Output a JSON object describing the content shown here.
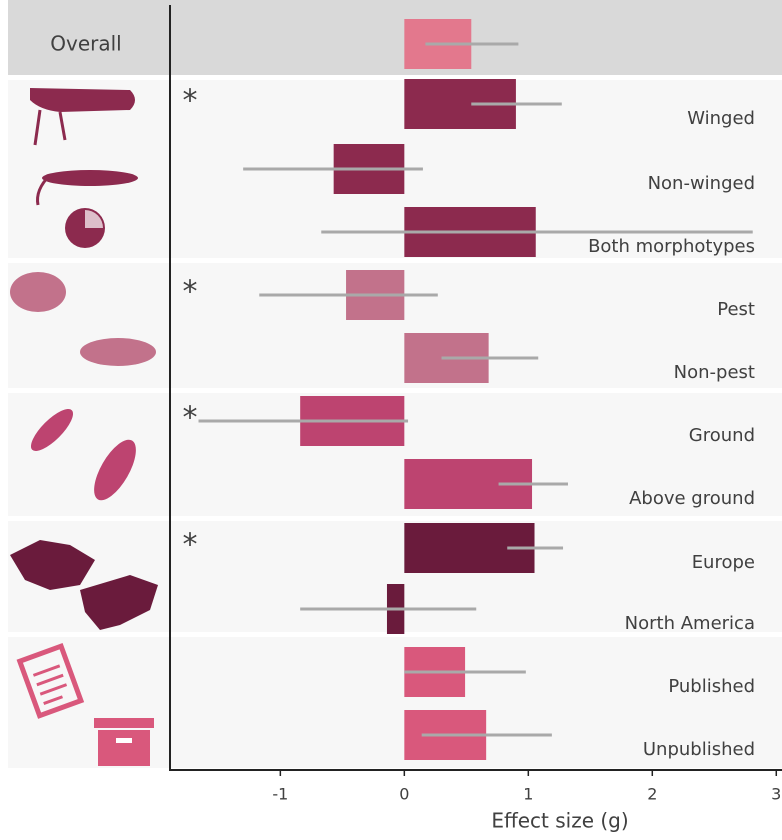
{
  "chart_data": {
    "type": "bar",
    "orientation": "horizontal",
    "x_label": "Effect size (g)",
    "categories": [
      "Overall",
      "Winged",
      "Non-winged",
      "Both morphotypes",
      "Pest",
      "Non-pest",
      "Ground",
      "Above ground",
      "Europe",
      "North America",
      "Published",
      "Unpublished"
    ],
    "values": [
      0.54,
      0.9,
      -0.57,
      1.06,
      -0.47,
      0.68,
      -0.84,
      1.03,
      1.05,
      -0.14,
      0.49,
      0.66
    ],
    "lower": [
      0.17,
      0.54,
      -1.3,
      -0.67,
      -1.17,
      0.3,
      -1.66,
      0.76,
      0.83,
      -0.84,
      0.0,
      0.14
    ],
    "upper": [
      0.92,
      1.27,
      0.15,
      2.81,
      0.27,
      1.08,
      0.03,
      1.32,
      1.28,
      0.58,
      0.98,
      1.19
    ],
    "colors": [
      "#e3788d",
      "#8c2a4e",
      "#8c2a4e",
      "#8c2a4e",
      "#c2728b",
      "#c2728b",
      "#bd4470",
      "#bd4470",
      "#6a1b3c",
      "#6a1b3c",
      "#d9587c",
      "#d9587c"
    ],
    "error_color": "#a9a9a9",
    "annotations": [
      {
        "text": "*",
        "category": "Winged"
      },
      {
        "text": "*",
        "category": "Pest"
      },
      {
        "text": "*",
        "category": "Ground"
      },
      {
        "text": "*",
        "category": "Europe"
      }
    ],
    "xlim": [
      -1.89,
      3.03
    ],
    "xticks": [
      -1,
      0,
      1,
      2,
      3
    ]
  }
}
